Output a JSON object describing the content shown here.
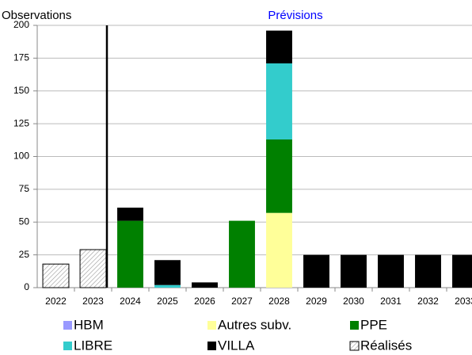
{
  "chart_data": {
    "type": "stacked-bar",
    "categories": [
      "2022",
      "2023",
      "2024",
      "2025",
      "2026",
      "2027",
      "2028",
      "2029",
      "2030",
      "2031",
      "2032",
      "2033"
    ],
    "series": [
      {
        "name": "Réalisés",
        "color": "#ffffff",
        "pattern": "hatch",
        "values": [
          18,
          29,
          null,
          null,
          null,
          null,
          null,
          null,
          null,
          null,
          null,
          null
        ]
      },
      {
        "name": "HBM",
        "color": "#9999ff",
        "values": [
          null,
          null,
          null,
          null,
          null,
          null,
          null,
          null,
          null,
          null,
          null,
          null
        ]
      },
      {
        "name": "Autres subv.",
        "color": "#ffff99",
        "values": [
          null,
          null,
          null,
          null,
          null,
          null,
          57,
          null,
          null,
          null,
          null,
          null
        ]
      },
      {
        "name": "PPE",
        "color": "#008000",
        "values": [
          null,
          null,
          51,
          null,
          null,
          51,
          56,
          null,
          null,
          null,
          null,
          null
        ]
      },
      {
        "name": "LIBRE",
        "color": "#33cccc",
        "values": [
          null,
          null,
          null,
          2,
          null,
          null,
          58,
          null,
          null,
          null,
          null,
          null
        ]
      },
      {
        "name": "VILLA",
        "color": "#000000",
        "values": [
          null,
          null,
          10,
          19,
          4,
          null,
          25,
          25,
          25,
          25,
          25,
          25
        ]
      }
    ],
    "legend_order": [
      "HBM",
      "Autres subv.",
      "PPE",
      "LIBRE",
      "VILLA",
      "Réalisés"
    ],
    "annotations": [
      "Observations",
      "Prévisions"
    ],
    "divider_before": "2024",
    "ylim": [
      0,
      200
    ],
    "yticks": [
      0,
      25,
      50,
      75,
      100,
      125,
      150,
      175,
      200
    ],
    "grid": true
  }
}
